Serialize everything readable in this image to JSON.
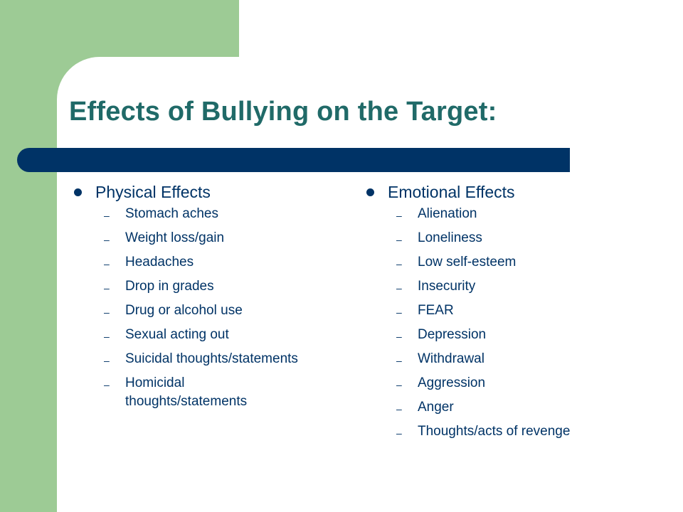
{
  "slide": {
    "title": "Effects of Bullying on the Target:",
    "colors": {
      "green": "#9dcb95",
      "navy": "#003366",
      "teal_title": "#206a68"
    },
    "left_column": {
      "heading": "Physical Effects",
      "items": [
        "Stomach aches",
        "Weight loss/gain",
        "Headaches",
        "Drop in grades",
        "Drug or alcohol use",
        "Sexual acting out",
        "Suicidal thoughts/statements",
        "Homicidal thoughts/statements"
      ]
    },
    "right_column": {
      "heading": "Emotional Effects",
      "items": [
        "Alienation",
        "Loneliness",
        "Low self-esteem",
        "Insecurity",
        "FEAR",
        "Depression",
        "Withdrawal",
        "Aggression",
        "Anger",
        "Thoughts/acts of revenge"
      ]
    }
  }
}
